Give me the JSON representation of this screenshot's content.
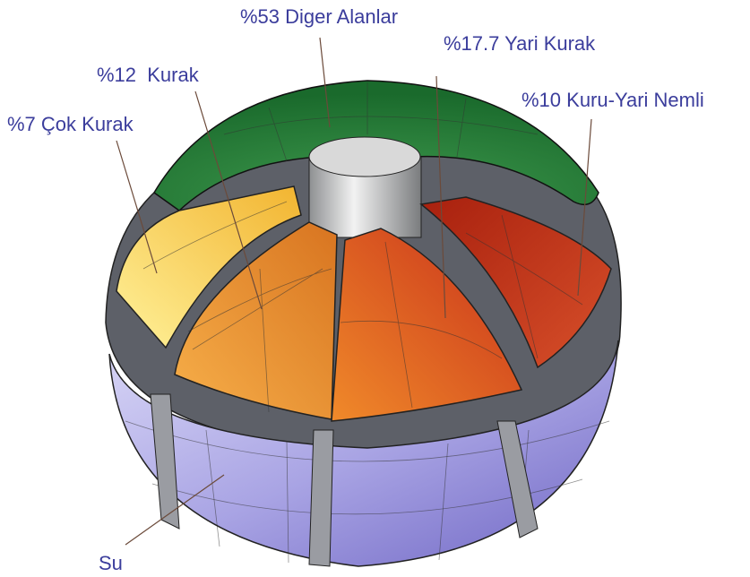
{
  "labels": {
    "other": "%53 Diger Alanlar",
    "semi_arid": "%17.7 Yari Kurak",
    "arid": "%12  Kurak",
    "dry_subhumid": "%10 Kuru-Yari Nemli",
    "hyper_arid": "%7 Çok Kurak",
    "water": "Su"
  }
}
